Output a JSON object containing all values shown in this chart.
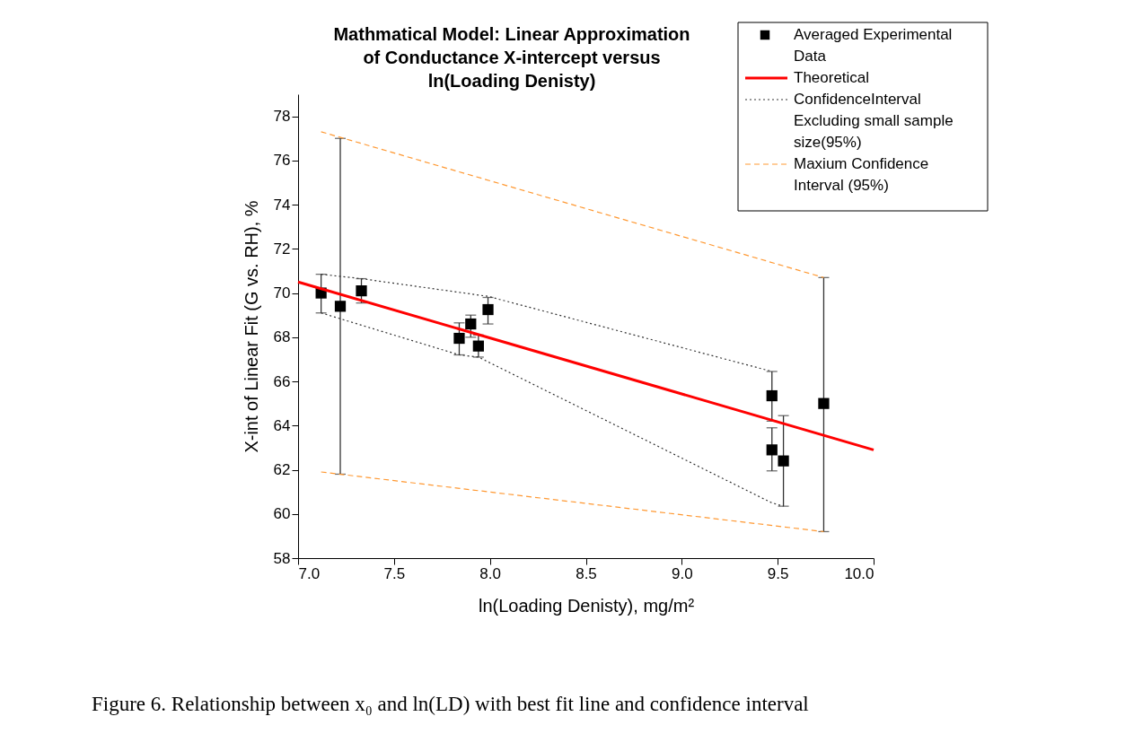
{
  "chart_data": {
    "type": "scatter",
    "title": "Mathmatical Model: Linear Approximation of Conductance X-intercept versus ln(Loading Denisty)",
    "xlabel": "ln(Loading Denisty), mg/m²",
    "ylabel": "X-int of Linear Fit (G vs. RH), %",
    "xlim": [
      7.0,
      10.0
    ],
    "xticks": [
      {
        "value": 7,
        "label": "7.0"
      },
      7.5,
      {
        "value": 8,
        "label": "8.0"
      },
      8.5,
      {
        "value": 9,
        "label": "9.0"
      },
      9.5,
      {
        "value": 10,
        "label": "10.0"
      }
    ],
    "ylim": [
      58,
      79
    ],
    "yticks": [
      58,
      60,
      62,
      64,
      66,
      68,
      70,
      72,
      74,
      76,
      78
    ],
    "grid": false,
    "legend": "top right",
    "series": [
      {
        "name": "Averaged Experimental Data",
        "type": "scatter",
        "marker": "square",
        "color": "#000000",
        "x": [
          7.12,
          7.22,
          7.33,
          7.84,
          7.9,
          7.94,
          7.99,
          9.47,
          9.47,
          9.53,
          9.74
        ],
        "values": [
          70.0,
          69.4,
          70.1,
          67.95,
          68.6,
          67.6,
          69.25,
          65.35,
          62.9,
          62.4,
          65.0
        ],
        "errors": [
          [
            69.1,
            70.85
          ],
          [
            61.8,
            77.0
          ],
          [
            69.55,
            70.65
          ],
          [
            67.2,
            68.65
          ],
          [
            68.0,
            69.0
          ],
          [
            67.1,
            68.1
          ],
          [
            68.6,
            69.8
          ],
          [
            64.2,
            66.45
          ],
          [
            61.95,
            63.9
          ],
          [
            60.35,
            64.45
          ],
          [
            59.2,
            70.7
          ]
        ]
      },
      {
        "name": "Theoretical",
        "type": "line",
        "line_style": "solid",
        "color": "#ff0000",
        "x": [
          7.0,
          10.0
        ],
        "values": [
          70.5,
          62.9
        ]
      },
      {
        "name": "ConfidenceInterval Excluding small sample size(95%)",
        "type": "line",
        "line_style": "dotted",
        "color": "#333333",
        "x": [
          7.12,
          7.33,
          7.99,
          9.47
        ],
        "values": [
          70.85,
          70.65,
          69.85,
          66.45
        ]
      },
      {
        "type": "line",
        "line_style": "dotted",
        "color": "#333333",
        "x": [
          7.12,
          7.84,
          7.94,
          9.47,
          9.53
        ],
        "values": [
          69.1,
          67.2,
          67.1,
          60.5,
          60.35
        ]
      },
      {
        "name": "Maxium Confidence Interval (95%)",
        "type": "line",
        "line_style": "dashed",
        "color": "#ff9933",
        "x": [
          7.12,
          9.74
        ],
        "values": [
          77.3,
          70.7
        ]
      },
      {
        "type": "line",
        "line_style": "dashed",
        "color": "#ff9933",
        "x": [
          7.12,
          9.74
        ],
        "values": [
          61.9,
          59.2
        ]
      }
    ],
    "annotations": [
      "Figure 6. Relationship between x₀ and ln(LD) with best fit line and confidence interval"
    ]
  }
}
